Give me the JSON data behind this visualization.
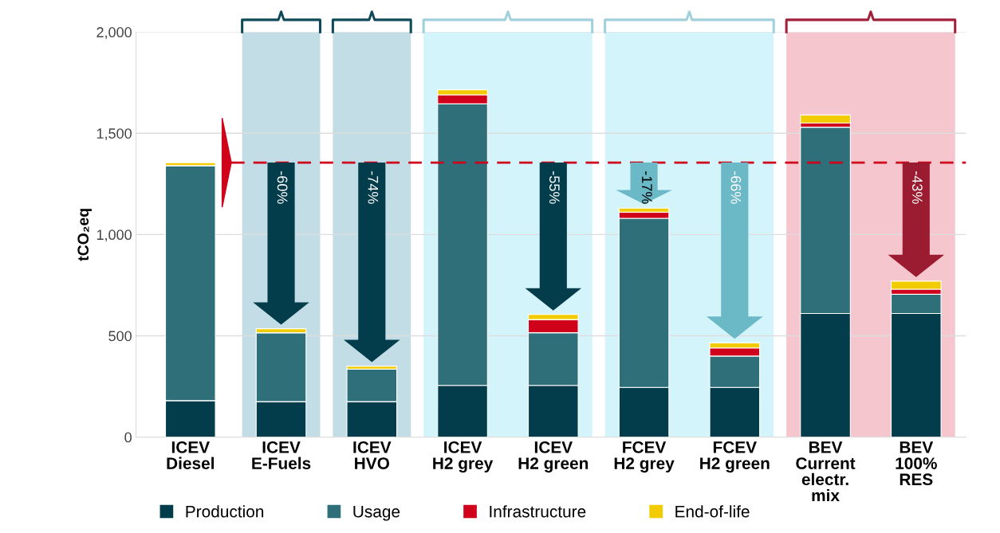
{
  "chart_data": {
    "type": "bar",
    "stacked": true,
    "ylabel": "tCO₂eq",
    "categories": [
      "ICEV\nDiesel",
      "ICEV\nE-Fuels",
      "ICEV\nHVO",
      "ICEV\nH2 grey",
      "ICEV\nH2 green",
      "FCEV\nH2 grey",
      "FCEV\nH2 green",
      "BEV\nCurrent\nelectr.\nmix",
      "BEV\n100%\nRES"
    ],
    "series": [
      {
        "name": "Production",
        "color": "#033c4b",
        "values": [
          180,
          175,
          175,
          255,
          255,
          245,
          245,
          610,
          610
        ]
      },
      {
        "name": "Usage",
        "color": "#2f6f7a",
        "values": [
          1160,
          340,
          160,
          1390,
          260,
          835,
          155,
          920,
          95
        ]
      },
      {
        "name": "Infrastructure",
        "color": "#d0021b",
        "values": [
          0,
          0,
          0,
          45,
          65,
          30,
          40,
          20,
          25
        ]
      },
      {
        "name": "End-of-life",
        "color": "#f2cc00",
        "values": [
          15,
          20,
          15,
          25,
          25,
          20,
          25,
          40,
          40
        ]
      }
    ],
    "ylim": [
      0,
      2000
    ],
    "yticks": [
      {
        "value": 0,
        "label": "0"
      },
      {
        "value": 500,
        "label": "500"
      },
      {
        "value": 1000,
        "label": "1,000"
      },
      {
        "value": 1500,
        "label": "1,500"
      },
      {
        "value": 2000,
        "label": "2,000"
      }
    ],
    "grid": "y",
    "legend": "bottom",
    "ref_lines": [
      {
        "axis": "y",
        "value": 1355,
        "color": "#d0021b",
        "line_style": "dashed"
      }
    ],
    "bands": [
      {
        "axis": "x",
        "from": "ICEV\nE-Fuels",
        "to": "ICEV\nE-Fuels",
        "color": "#c2dde5"
      },
      {
        "axis": "x",
        "from": "ICEV\nHVO",
        "to": "ICEV\nHVO",
        "color": "#c2dde5"
      },
      {
        "axis": "x",
        "from": "ICEV\nH2 grey",
        "to": "ICEV\nH2 green",
        "color": "#d4f4fc"
      },
      {
        "axis": "x",
        "from": "FCEV\nH2 grey",
        "to": "FCEV\nH2 green",
        "color": "#d4f4fc"
      },
      {
        "axis": "x",
        "from": "BEV\nCurrent\nelectr.\nmix",
        "to": "BEV\n100%\nRES",
        "color": "#f5c6ce"
      }
    ],
    "annotations": [
      "-60%",
      "-74%",
      "-55%",
      "-17%",
      "-66%",
      "-43%"
    ]
  }
}
